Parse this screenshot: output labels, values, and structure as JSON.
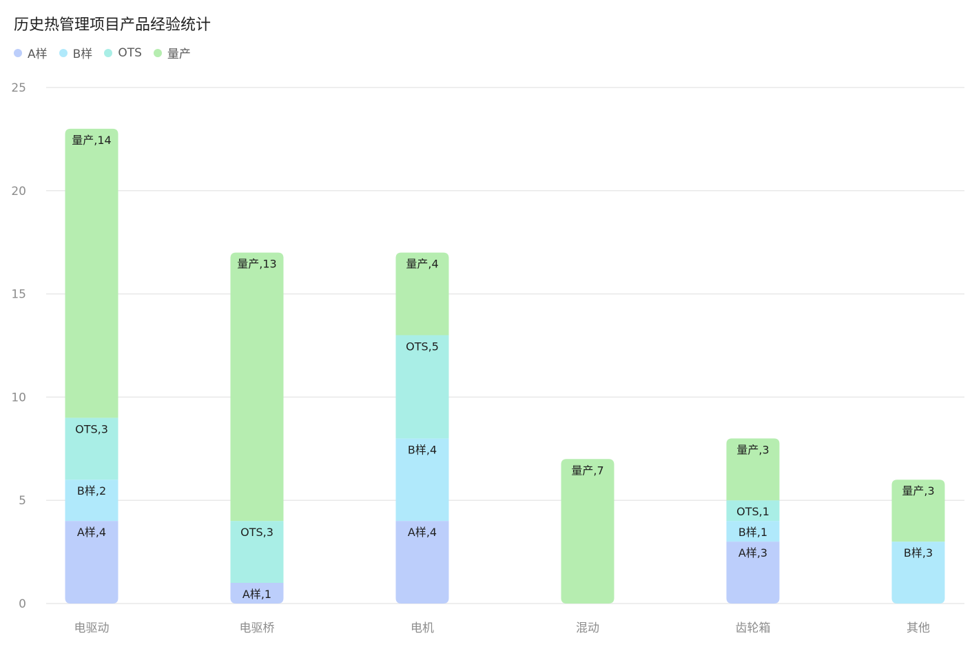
{
  "chart_data": {
    "type": "bar",
    "stacked": true,
    "title": "历史热管理项目产品经验统计",
    "categories": [
      "电驱动",
      "电驱桥",
      "电机",
      "混动",
      "齿轮箱",
      "其他"
    ],
    "series": [
      {
        "name": "A样",
        "color": "#bccefb",
        "values": [
          4,
          1,
          4,
          0,
          3,
          0
        ]
      },
      {
        "name": "B样",
        "color": "#b0e9fb",
        "values": [
          2,
          0,
          4,
          0,
          1,
          3
        ]
      },
      {
        "name": "OTS",
        "color": "#a9eee6",
        "values": [
          3,
          3,
          5,
          0,
          1,
          0
        ]
      },
      {
        "name": "量产",
        "color": "#b6edb0",
        "values": [
          14,
          13,
          4,
          7,
          3,
          3
        ]
      }
    ],
    "ylim": [
      0,
      25
    ],
    "yticks": [
      0,
      5,
      10,
      15,
      20,
      25
    ],
    "legend_position": "top-left",
    "grid": true
  }
}
